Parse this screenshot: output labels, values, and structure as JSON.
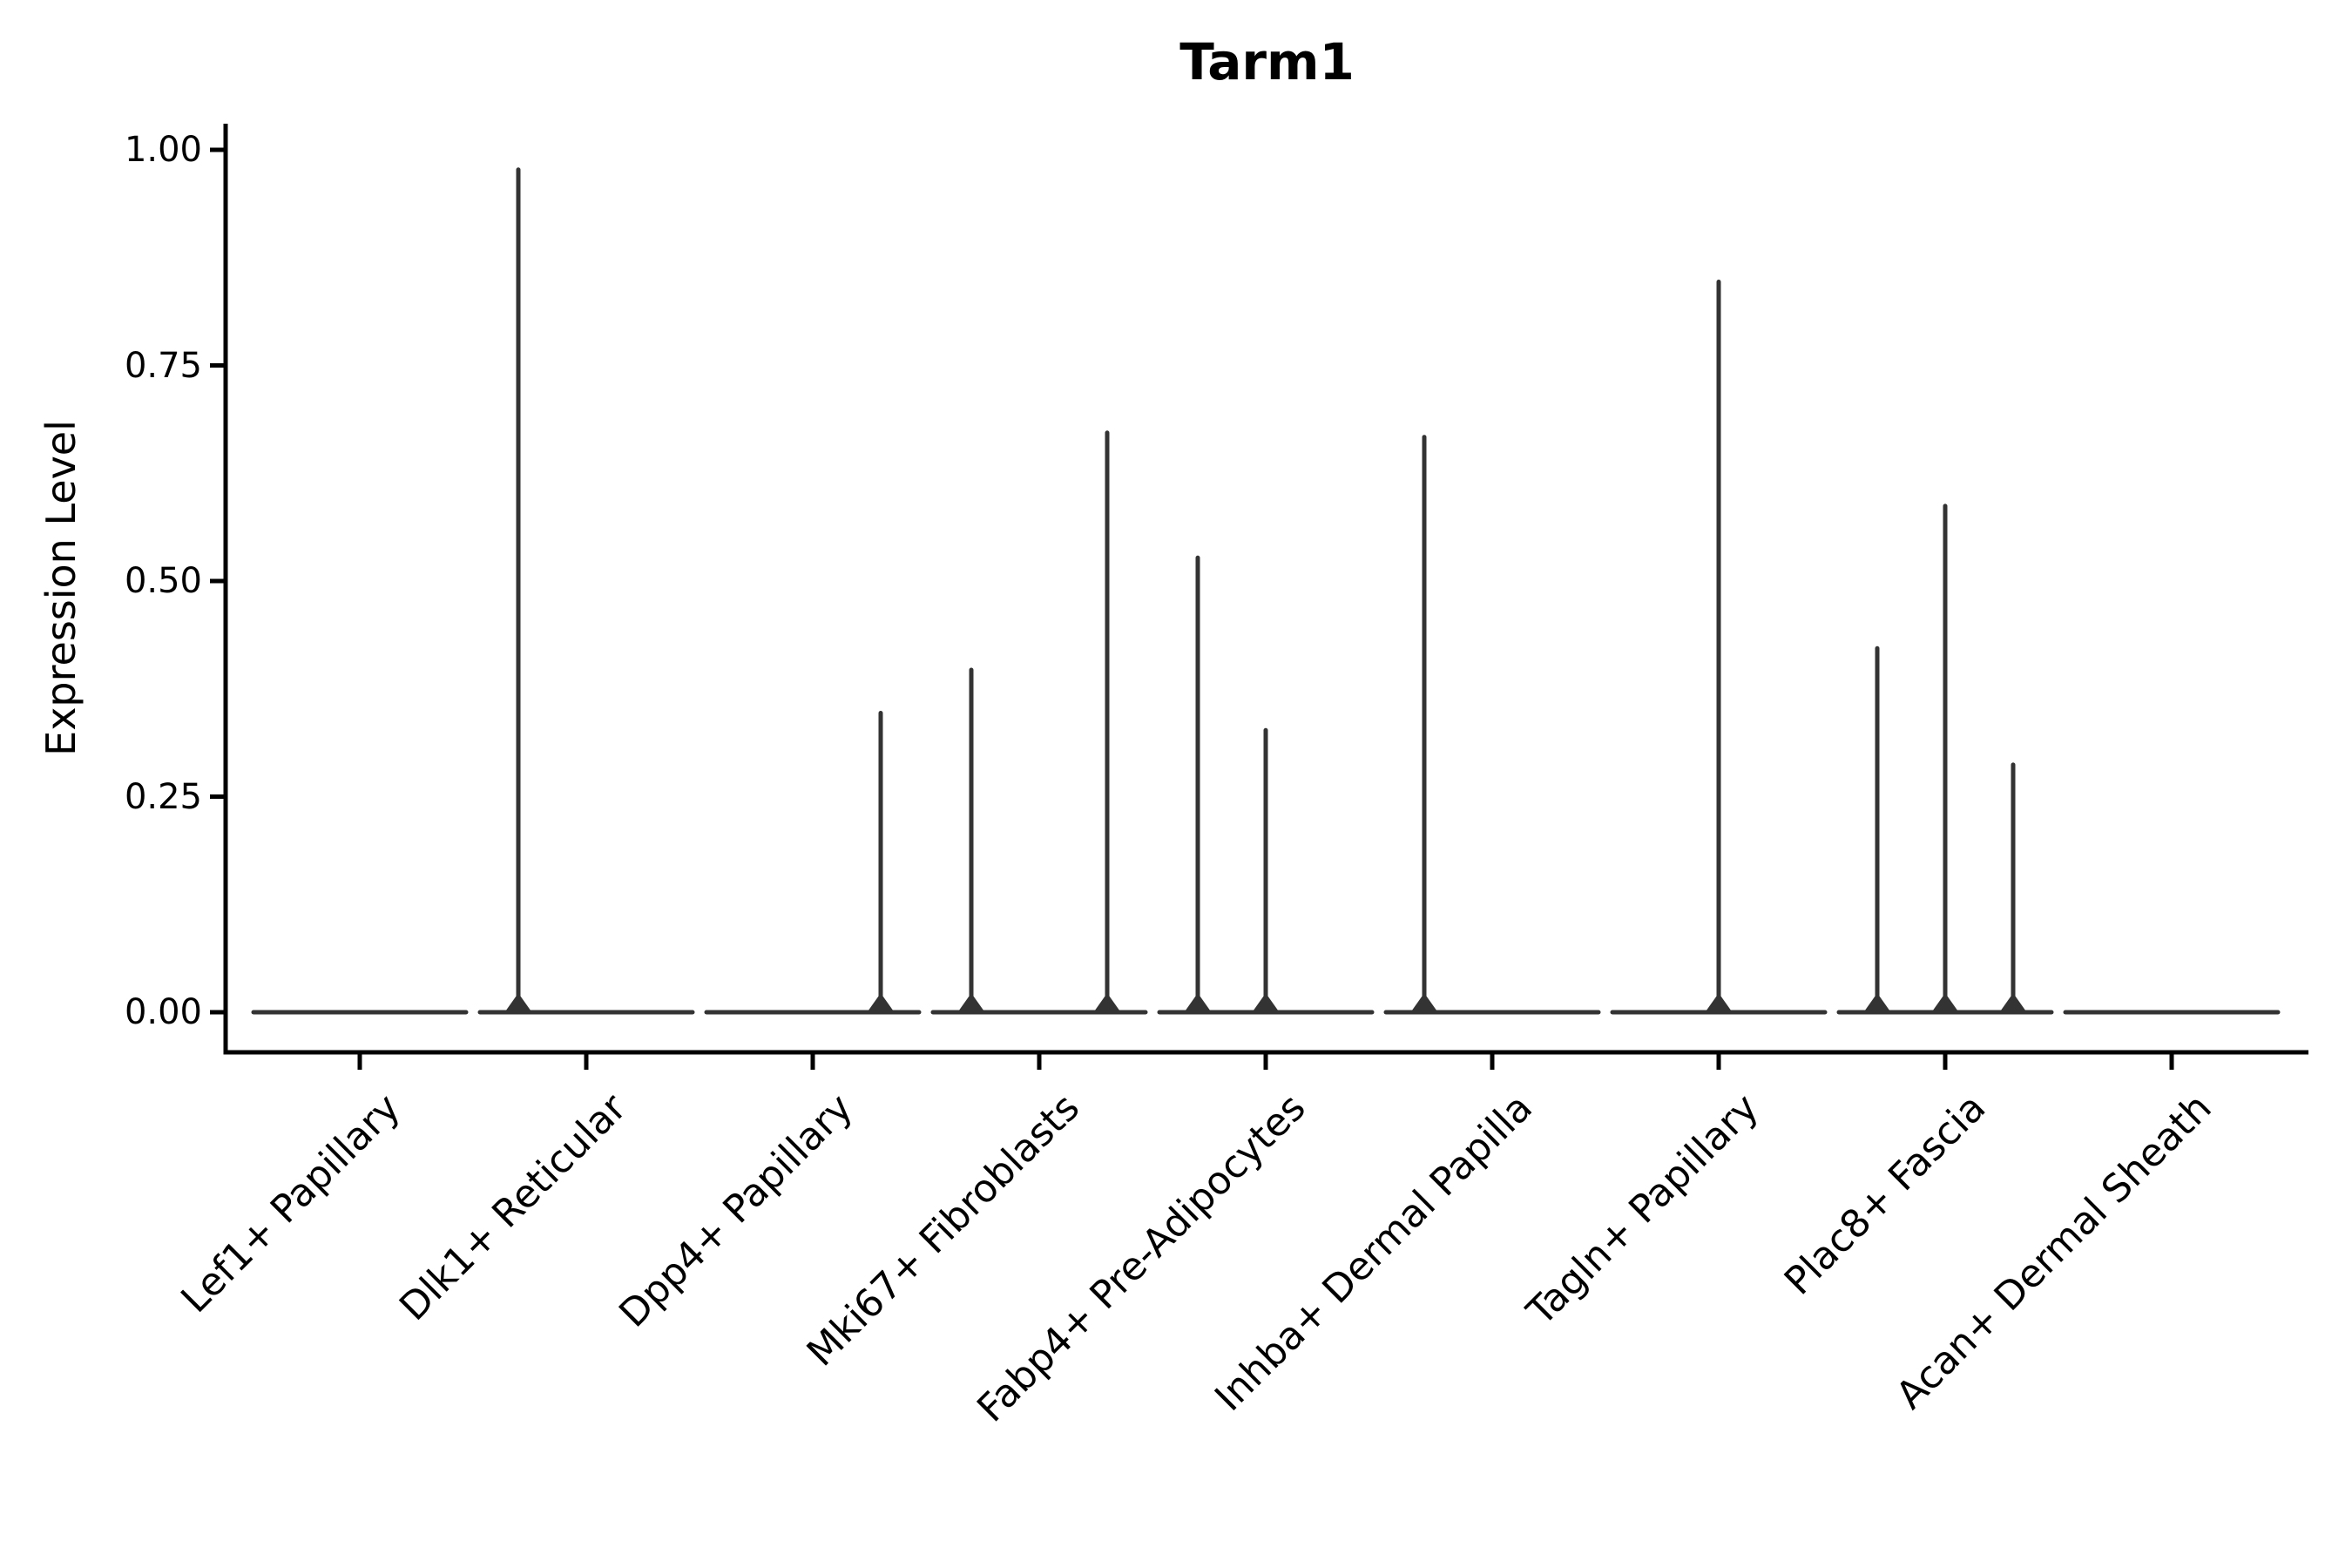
{
  "figure": {
    "background": "#ffffff"
  },
  "chart_data": {
    "type": "violin",
    "title": "Tarm1",
    "ylabel": "Expression Level",
    "xlabel": "",
    "ylim": [
      0.0,
      1.0
    ],
    "ytick_labels": [
      "1.00",
      "0.75",
      "0.50",
      "0.25",
      "0.00"
    ],
    "ytick_values": [
      1.0,
      0.75,
      0.5,
      0.25,
      0.0
    ],
    "grid": false,
    "legend": "none",
    "categories": [
      "Lef1+ Papillary",
      "Dlk1+ Reticular",
      "Dpp4+ Papillary",
      "Mki67+ Fibroblasts",
      "Fabp4+ Pre-Adipocytes",
      "Inhba+ Dermal Papilla",
      "Tagln+ Papillary",
      "Plac8+ Fascia",
      "Acan+ Dermal Sheath"
    ],
    "violins": [
      {
        "category": "Lef1+ Papillary",
        "baseline_value": 0.0,
        "spikes": []
      },
      {
        "category": "Dlk1+ Reticular",
        "baseline_value": 0.0,
        "spikes": [
          {
            "offset": -0.3,
            "max": 0.98
          }
        ]
      },
      {
        "category": "Dpp4+ Papillary",
        "baseline_value": 0.0,
        "spikes": [
          {
            "offset": 0.3,
            "max": 0.35
          }
        ]
      },
      {
        "category": "Mki67+ Fibroblasts",
        "baseline_value": 0.0,
        "spikes": [
          {
            "offset": -0.3,
            "max": 0.4
          },
          {
            "offset": 0.3,
            "max": 0.675
          }
        ]
      },
      {
        "category": "Fabp4+ Pre-Adipocytes",
        "baseline_value": 0.0,
        "spikes": [
          {
            "offset": -0.3,
            "max": 0.53
          },
          {
            "offset": 0.0,
            "max": 0.33
          }
        ]
      },
      {
        "category": "Inhba+ Dermal Papilla",
        "baseline_value": 0.0,
        "spikes": [
          {
            "offset": -0.3,
            "max": 0.67
          }
        ]
      },
      {
        "category": "Tagln+ Papillary",
        "baseline_value": 0.0,
        "spikes": [
          {
            "offset": 0.0,
            "max": 0.85
          }
        ]
      },
      {
        "category": "Plac8+ Fascia",
        "baseline_value": 0.0,
        "spikes": [
          {
            "offset": -0.3,
            "max": 0.425
          },
          {
            "offset": 0.0,
            "max": 0.59
          },
          {
            "offset": 0.3,
            "max": 0.29
          }
        ]
      },
      {
        "category": "Acan+ Dermal Sheath",
        "baseline_value": 0.0,
        "spikes": []
      }
    ],
    "colors": {
      "violin": "#333333",
      "axis": "#000000",
      "text": "#000000"
    }
  }
}
